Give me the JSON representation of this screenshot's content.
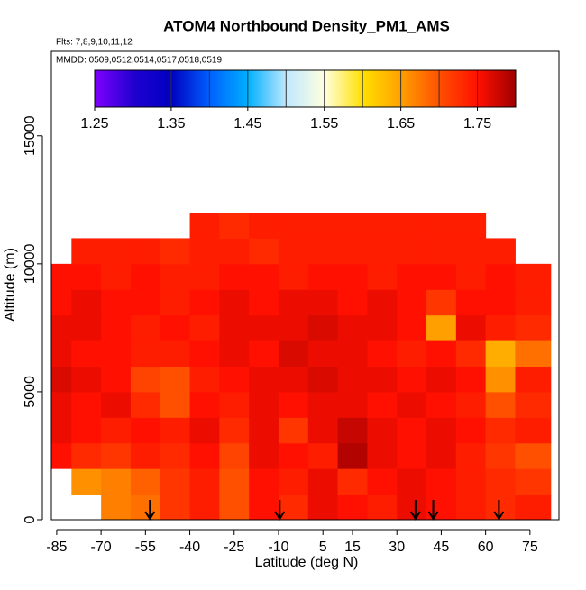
{
  "chart_data": {
    "type": "heatmap",
    "title": "ATOM4 Northbound Density_PM1_AMS",
    "subtitle": "Flts: 7,8,9,10,11,12",
    "annotation": "MMDD: 0509,0512,0514,0517,0518,0519",
    "x_label": "Latitude (deg N)",
    "y_label": "Altitude (m)",
    "xlim": [
      -86.8,
      84.8
    ],
    "ylim": [
      0,
      18300
    ],
    "xticks": [
      -85,
      -70,
      -55,
      -40,
      -25,
      -10,
      5,
      15,
      30,
      45,
      60,
      75
    ],
    "yticks": [
      0,
      5000,
      10000,
      15000
    ],
    "x_edges": [
      -87,
      -80,
      -70,
      -60,
      -50,
      -40,
      -30,
      -20,
      -10,
      0,
      10,
      20,
      30,
      40,
      50,
      60,
      70,
      82
    ],
    "y_edges": [
      0,
      1000,
      2000,
      3000,
      4000,
      5000,
      6000,
      7000,
      8000,
      9000,
      10000,
      11000,
      12000
    ],
    "z": [
      [
        null,
        null,
        1.67,
        1.68,
        1.72,
        1.74,
        1.7,
        1.75,
        1.73,
        1.76,
        1.75,
        1.74,
        1.76,
        1.75,
        1.74,
        1.73,
        1.74
      ],
      [
        null,
        1.66,
        1.67,
        1.69,
        1.72,
        1.74,
        1.7,
        1.75,
        1.74,
        1.76,
        1.73,
        1.75,
        1.76,
        1.75,
        1.74,
        1.73,
        1.72
      ],
      [
        1.75,
        1.73,
        1.72,
        1.74,
        1.73,
        1.75,
        1.71,
        1.76,
        1.75,
        1.74,
        1.79,
        1.76,
        1.75,
        1.76,
        1.74,
        1.72,
        1.7
      ],
      [
        1.76,
        1.75,
        1.74,
        1.75,
        1.74,
        1.76,
        1.73,
        1.76,
        1.72,
        1.76,
        1.78,
        1.76,
        1.75,
        1.76,
        1.75,
        1.73,
        1.74
      ],
      [
        1.76,
        1.75,
        1.76,
        1.73,
        1.7,
        1.75,
        1.74,
        1.76,
        1.75,
        1.76,
        1.76,
        1.75,
        1.76,
        1.75,
        1.74,
        1.7,
        1.73
      ],
      [
        1.77,
        1.76,
        1.75,
        1.71,
        1.7,
        1.74,
        1.75,
        1.76,
        1.76,
        1.77,
        1.76,
        1.76,
        1.75,
        1.76,
        1.75,
        1.66,
        1.74
      ],
      [
        1.76,
        1.75,
        1.75,
        1.74,
        1.74,
        1.75,
        1.76,
        1.75,
        1.77,
        1.76,
        1.76,
        1.75,
        1.74,
        1.75,
        1.73,
        1.64,
        1.68
      ],
      [
        1.76,
        1.76,
        1.75,
        1.74,
        1.75,
        1.74,
        1.76,
        1.76,
        1.76,
        1.77,
        1.76,
        1.76,
        1.75,
        1.65,
        1.76,
        1.74,
        1.73
      ],
      [
        1.75,
        1.76,
        1.75,
        1.75,
        1.74,
        1.75,
        1.76,
        1.75,
        1.76,
        1.76,
        1.75,
        1.76,
        1.75,
        1.72,
        1.75,
        1.75,
        1.74
      ],
      [
        1.75,
        1.75,
        1.74,
        1.75,
        1.74,
        1.74,
        1.75,
        1.75,
        1.74,
        1.75,
        1.75,
        1.74,
        1.75,
        1.75,
        1.74,
        1.75,
        1.74
      ],
      [
        null,
        1.74,
        1.74,
        1.74,
        1.73,
        1.74,
        1.74,
        1.73,
        1.74,
        1.74,
        1.74,
        1.74,
        1.74,
        1.74,
        1.74,
        1.74,
        null
      ],
      [
        null,
        null,
        null,
        null,
        null,
        1.74,
        1.73,
        1.74,
        1.74,
        1.74,
        1.74,
        1.74,
        1.74,
        1.74,
        1.74,
        null,
        null
      ]
    ],
    "clim": [
      1.25,
      1.8
    ],
    "colorbar_ticks": [
      1.25,
      1.35,
      1.45,
      1.55,
      1.65,
      1.75
    ],
    "colorscale": [
      "#8000ff",
      "#2000d0",
      "#0000c0",
      "#0060ff",
      "#00b0ff",
      "#c0e8ff",
      "#ffffe0",
      "#ffe000",
      "#ffa000",
      "#ff5000",
      "#ff1000",
      "#a00000"
    ],
    "arrows_x": [
      -53.5,
      -9.6,
      36.3,
      42.3,
      64.5
    ]
  }
}
